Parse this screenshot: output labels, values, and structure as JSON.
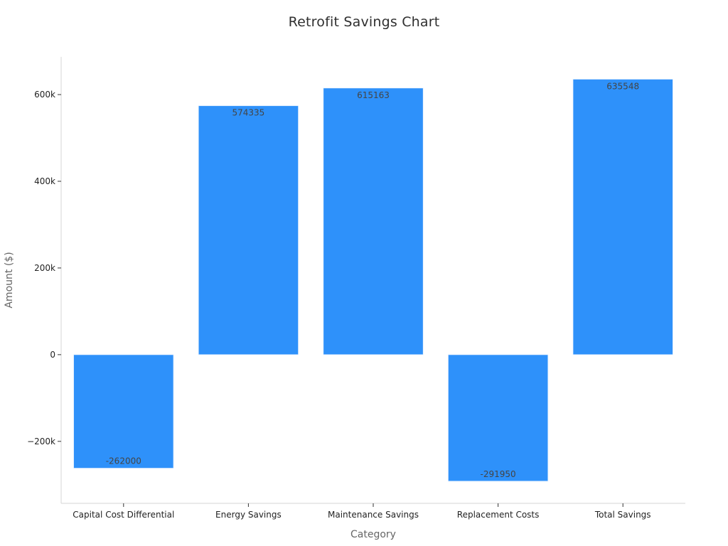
{
  "chart_data": {
    "type": "bar",
    "title": "Retrofit Savings Chart",
    "xlabel": "Category",
    "ylabel": "Amount ($)",
    "categories": [
      "Capital Cost Differential",
      "Energy Savings",
      "Maintenance Savings",
      "Replacement Costs",
      "Total Savings"
    ],
    "values": [
      -262000,
      574335,
      615163,
      -291950,
      635548
    ],
    "data_labels": [
      "-262000",
      "574335",
      "615163",
      "-291950",
      "635548"
    ],
    "ylim": [
      -343000,
      687000
    ],
    "yticks": [
      -200000,
      0,
      200000,
      400000,
      600000
    ],
    "ytick_labels": [
      "−200k",
      "0",
      "200k",
      "400k",
      "600k"
    ],
    "grid": false,
    "bar_color": "#2e91fa",
    "label_color": "#444444"
  }
}
